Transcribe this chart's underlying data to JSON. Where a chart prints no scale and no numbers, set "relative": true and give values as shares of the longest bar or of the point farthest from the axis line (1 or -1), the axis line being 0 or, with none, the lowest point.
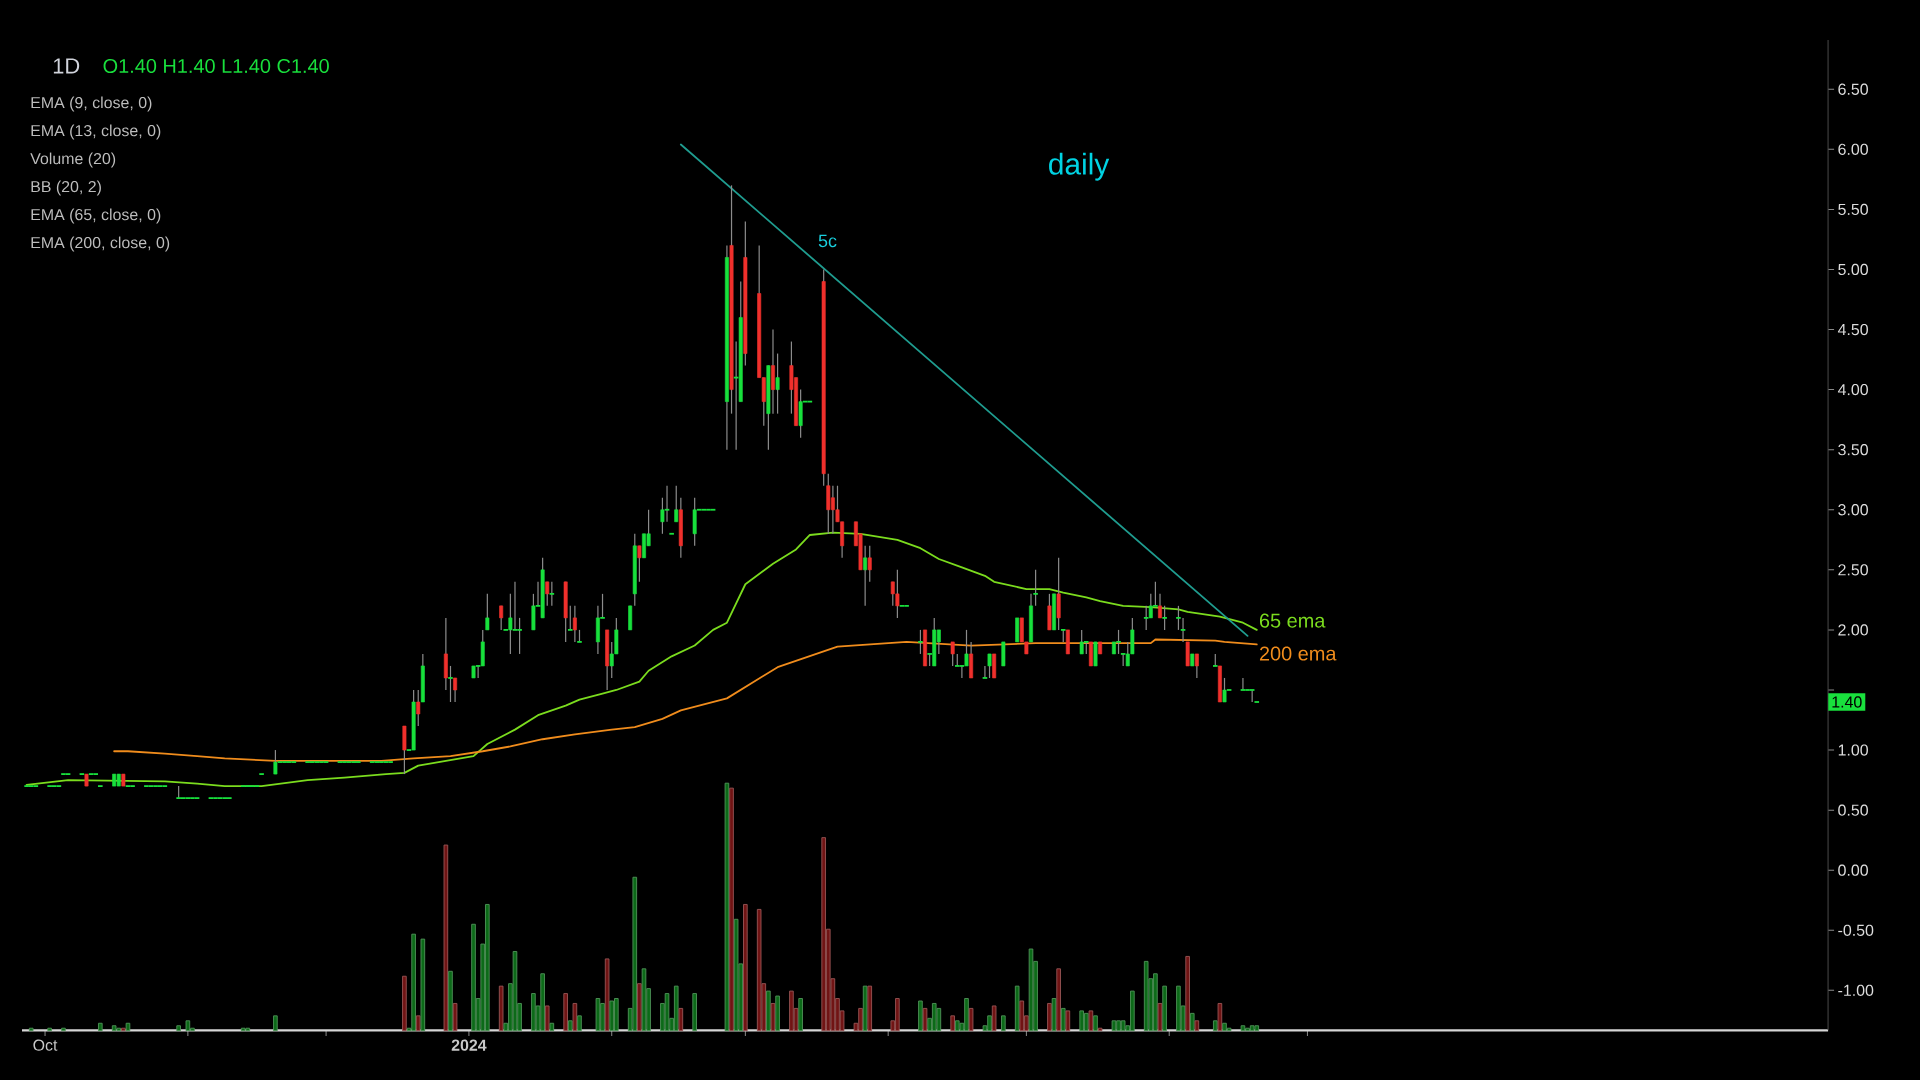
{
  "chart_data": [
    {
      "type": "candlestick",
      "title": "daily",
      "subtitle": "1D",
      "annotations": [
        "O1.40 H1.40 L1.40 C1.40",
        "EMA (9, close, 0)",
        "EMA (13, close, 0)",
        "Volume (20)",
        "BB (20, 2)",
        "EMA (65, close, 0)",
        "EMA (200, close, 0)",
        "5c",
        {
          "text": "1.40",
          "y": 1.4
        }
      ],
      "x": [
        "2023-09-27",
        "2023-09-28",
        "2023-09-29",
        "2023-10-02",
        "2023-10-03",
        "2023-10-04",
        "2023-10-05",
        "2023-10-06",
        "2023-10-09",
        "2023-10-10",
        "2023-10-11",
        "2023-10-12",
        "2023-10-13",
        "2023-10-16",
        "2023-10-17",
        "2023-10-18",
        "2023-10-19",
        "2023-10-20",
        "2023-10-23",
        "2023-10-24",
        "2023-10-25",
        "2023-10-26",
        "2023-10-27",
        "2023-10-30",
        "2023-10-31",
        "2023-11-01",
        "2023-11-02",
        "2023-11-03",
        "2023-11-06",
        "2023-11-07",
        "2023-11-08",
        "2023-11-09",
        "2023-11-10",
        "2023-11-13",
        "2023-11-14",
        "2023-11-15",
        "2023-11-16",
        "2023-11-17",
        "2023-11-20",
        "2023-11-21",
        "2023-11-22",
        "2023-11-23",
        "2023-11-24",
        "2023-11-27",
        "2023-11-28",
        "2023-11-29",
        "2023-11-30",
        "2023-12-01",
        "2023-12-04",
        "2023-12-05",
        "2023-12-06",
        "2023-12-07",
        "2023-12-08",
        "2023-12-11",
        "2023-12-12",
        "2023-12-13",
        "2023-12-14",
        "2023-12-15",
        "2023-12-18",
        "2023-12-19",
        "2023-12-20",
        "2023-12-21",
        "2023-12-22",
        "2023-12-27",
        "2023-12-28",
        "2023-12-29",
        "2024-01-02",
        "2024-01-03",
        "2024-01-04",
        "2024-01-05",
        "2024-01-08",
        "2024-01-09",
        "2024-01-10",
        "2024-01-11",
        "2024-01-12",
        "2024-01-15",
        "2024-01-16",
        "2024-01-17",
        "2024-01-18",
        "2024-01-19",
        "2024-01-22",
        "2024-01-23",
        "2024-01-24",
        "2024-01-25",
        "2024-01-29",
        "2024-01-30",
        "2024-01-31",
        "2024-02-01",
        "2024-02-02",
        "2024-02-05",
        "2024-02-06",
        "2024-02-07",
        "2024-02-08",
        "2024-02-09",
        "2024-02-12",
        "2024-02-13",
        "2024-02-14",
        "2024-02-15",
        "2024-02-16",
        "2024-02-19",
        "2024-02-20",
        "2024-02-21",
        "2024-02-22",
        "2024-02-23",
        "2024-02-26",
        "2024-02-27",
        "2024-02-28",
        "2024-02-29",
        "2024-03-01",
        "2024-03-04",
        "2024-03-05",
        "2024-03-06",
        "2024-03-07",
        "2024-03-08",
        "2024-03-11",
        "2024-03-12",
        "2024-03-13",
        "2024-03-14",
        "2024-03-15",
        "2024-03-18",
        "2024-03-19",
        "2024-03-20",
        "2024-03-21",
        "2024-03-22",
        "2024-03-25",
        "2024-03-26",
        "2024-03-27",
        "2024-03-28",
        "2024-04-02",
        "2024-04-03",
        "2024-04-04",
        "2024-04-05",
        "2024-04-08",
        "2024-04-09",
        "2024-04-10",
        "2024-04-11",
        "2024-04-12",
        "2024-04-15",
        "2024-04-16",
        "2024-04-17",
        "2024-04-18",
        "2024-04-19",
        "2024-04-22",
        "2024-04-23",
        "2024-04-24",
        "2024-04-26",
        "2024-04-29",
        "2024-04-30",
        "2024-05-01",
        "2024-05-02",
        "2024-05-03",
        "2024-05-06",
        "2024-05-07",
        "2024-05-08",
        "2024-05-09",
        "2024-05-10",
        "2024-05-13",
        "2024-05-14",
        "2024-05-15",
        "2024-05-16",
        "2024-05-17",
        "2024-05-20",
        "2024-05-21",
        "2024-05-22",
        "2024-05-23",
        "2024-05-24",
        "2024-05-27",
        "2024-05-28",
        "2024-05-29",
        "2024-05-30",
        "2024-05-31",
        "2024-06-03",
        "2024-06-04",
        "2024-06-05",
        "2024-06-06",
        "2024-06-07",
        "2024-06-11",
        "2024-06-12",
        "2024-06-13",
        "2024-06-14",
        "2024-06-17",
        "2024-06-18",
        "2024-06-19",
        "2024-06-20"
      ],
      "ohlc": [
        [
          0.7,
          0.7,
          0.7,
          0.7
        ],
        [
          0.7,
          0.7,
          0.7,
          0.7
        ],
        [
          0.7,
          0.7,
          0.7,
          0.7
        ],
        [
          0.7,
          0.7,
          0.7,
          0.7
        ],
        [
          0.7,
          0.7,
          0.7,
          0.7
        ],
        [
          0.7,
          0.7,
          0.7,
          0.7
        ],
        [
          0.8,
          0.8,
          0.8,
          0.8
        ],
        [
          0.8,
          0.8,
          0.8,
          0.8
        ],
        [
          0.8,
          0.8,
          0.8,
          0.8
        ],
        [
          0.8,
          0.8,
          0.7,
          0.7
        ],
        [
          0.8,
          0.8,
          0.8,
          0.8
        ],
        [
          0.8,
          0.8,
          0.8,
          0.8
        ],
        [
          0.7,
          0.7,
          0.7,
          0.7
        ],
        [
          0.7,
          0.8,
          0.7,
          0.8
        ],
        [
          0.7,
          0.8,
          0.7,
          0.8
        ],
        [
          0.8,
          0.8,
          0.7,
          0.7
        ],
        [
          0.7,
          0.7,
          0.7,
          0.7
        ],
        [
          0.7,
          0.7,
          0.7,
          0.7
        ],
        [
          0.7,
          0.7,
          0.7,
          0.7
        ],
        [
          0.7,
          0.7,
          0.7,
          0.7
        ],
        [
          0.7,
          0.7,
          0.7,
          0.7
        ],
        [
          0.7,
          0.7,
          0.7,
          0.7
        ],
        [
          0.7,
          0.7,
          0.7,
          0.7
        ],
        [
          0.6,
          0.7,
          0.6,
          0.6
        ],
        [
          0.6,
          0.6,
          0.6,
          0.6
        ],
        [
          0.6,
          0.6,
          0.6,
          0.6
        ],
        [
          0.6,
          0.6,
          0.6,
          0.6
        ],
        [
          0.6,
          0.6,
          0.6,
          0.6
        ],
        [
          0.6,
          0.6,
          0.6,
          0.6
        ],
        [
          0.6,
          0.6,
          0.6,
          0.6
        ],
        [
          0.6,
          0.6,
          0.6,
          0.6
        ],
        [
          0.6,
          0.6,
          0.6,
          0.6
        ],
        [
          0.6,
          0.6,
          0.6,
          0.6
        ],
        [
          0.7,
          0.7,
          0.7,
          0.7
        ],
        [
          0.7,
          0.7,
          0.7,
          0.7
        ],
        [
          0.7,
          0.7,
          0.7,
          0.7
        ],
        [
          0.7,
          0.7,
          0.7,
          0.7
        ],
        [
          0.8,
          0.8,
          0.8,
          0.8
        ],
        [
          0.8,
          1.0,
          0.8,
          0.9
        ],
        [
          0.9,
          0.9,
          0.9,
          0.9
        ],
        [
          0.9,
          0.9,
          0.9,
          0.9
        ],
        [
          0.9,
          0.9,
          0.9,
          0.9
        ],
        [
          0.9,
          0.9,
          0.9,
          0.9
        ],
        [
          0.9,
          0.9,
          0.9,
          0.9
        ],
        [
          0.9,
          0.9,
          0.9,
          0.9
        ],
        [
          0.9,
          0.9,
          0.9,
          0.9
        ],
        [
          0.9,
          0.9,
          0.9,
          0.9
        ],
        [
          0.9,
          0.9,
          0.9,
          0.9
        ],
        [
          0.9,
          0.9,
          0.9,
          0.9
        ],
        [
          0.9,
          0.9,
          0.9,
          0.9
        ],
        [
          0.9,
          0.9,
          0.9,
          0.9
        ],
        [
          0.9,
          0.9,
          0.9,
          0.9
        ],
        [
          0.9,
          0.9,
          0.9,
          0.9
        ],
        [
          0.9,
          0.9,
          0.9,
          0.9
        ],
        [
          0.9,
          0.9,
          0.9,
          0.9
        ],
        [
          0.9,
          0.9,
          0.9,
          0.9
        ],
        [
          0.9,
          0.9,
          0.9,
          0.9
        ],
        [
          0.9,
          0.9,
          0.9,
          0.9
        ],
        [
          1.2,
          1.2,
          0.8,
          1.0
        ],
        [
          1.0,
          1.0,
          1.0,
          1.0
        ],
        [
          1.0,
          1.5,
          1.0,
          1.4
        ],
        [
          1.4,
          1.5,
          1.2,
          1.3
        ],
        [
          1.4,
          1.8,
          1.4,
          1.7
        ],
        [
          1.8,
          2.1,
          1.5,
          1.6
        ],
        [
          1.6,
          1.7,
          1.4,
          1.6
        ],
        [
          1.6,
          1.6,
          1.4,
          1.5
        ],
        [
          1.6,
          1.7,
          1.6,
          1.7
        ],
        [
          1.7,
          1.7,
          1.6,
          1.7
        ],
        [
          1.7,
          2.0,
          1.7,
          1.9
        ],
        [
          2.0,
          2.3,
          2.0,
          2.1
        ],
        [
          2.2,
          2.2,
          2.0,
          2.1
        ],
        [
          2.0,
          2.0,
          2.0,
          2.0
        ],
        [
          2.0,
          2.3,
          1.8,
          2.1
        ],
        [
          2.0,
          2.4,
          2.0,
          2.0
        ],
        [
          2.0,
          2.1,
          1.8,
          2.0
        ],
        [
          2.0,
          2.3,
          2.0,
          2.2
        ],
        [
          2.2,
          2.4,
          2.2,
          2.2
        ],
        [
          2.1,
          2.6,
          2.1,
          2.5
        ],
        [
          2.4,
          2.4,
          2.2,
          2.3
        ],
        [
          2.3,
          2.4,
          2.2,
          2.3
        ],
        [
          2.4,
          2.4,
          1.9,
          2.1
        ],
        [
          2.0,
          2.2,
          2.0,
          2.0
        ],
        [
          2.1,
          2.2,
          1.9,
          2.0
        ],
        [
          1.9,
          2.0,
          1.9,
          1.9
        ],
        [
          1.9,
          2.2,
          1.8,
          2.1
        ],
        [
          2.1,
          2.3,
          2.1,
          2.1
        ],
        [
          2.0,
          2.0,
          1.5,
          1.7
        ],
        [
          1.7,
          1.9,
          1.6,
          1.8
        ],
        [
          1.8,
          2.1,
          1.8,
          2.0
        ],
        [
          2.0,
          2.2,
          2.0,
          2.2
        ],
        [
          2.3,
          2.8,
          2.2,
          2.7
        ],
        [
          2.7,
          2.7,
          2.4,
          2.6
        ],
        [
          2.6,
          2.8,
          2.6,
          2.8
        ],
        [
          2.7,
          3.0,
          2.7,
          2.8
        ],
        [
          2.9,
          3.1,
          2.8,
          3.0
        ],
        [
          3.0,
          3.2,
          2.9,
          3.0
        ],
        [
          2.8,
          2.8,
          2.8,
          2.8
        ],
        [
          2.9,
          3.2,
          2.9,
          3.0
        ],
        [
          3.0,
          3.1,
          2.6,
          2.7
        ],
        [
          2.8,
          3.1,
          2.7,
          3.0
        ],
        [
          3.0,
          3.0,
          3.0,
          3.0
        ],
        [
          3.0,
          3.0,
          3.0,
          3.0
        ],
        [
          3.0,
          3.0,
          3.0,
          3.0
        ],
        [
          3.0,
          3.0,
          3.0,
          3.0
        ],
        [
          3.9,
          5.2,
          3.5,
          5.1
        ],
        [
          5.2,
          5.7,
          3.8,
          4.0
        ],
        [
          4.1,
          4.4,
          3.5,
          4.1
        ],
        [
          3.9,
          4.9,
          3.9,
          4.6
        ],
        [
          5.1,
          5.4,
          4.2,
          4.3
        ],
        [
          4.8,
          5.2,
          4.1,
          4.1
        ],
        [
          4.1,
          4.1,
          3.7,
          3.9
        ],
        [
          3.8,
          4.2,
          3.5,
          4.2
        ],
        [
          4.2,
          4.5,
          3.8,
          4.0
        ],
        [
          4.0,
          4.3,
          3.8,
          4.1
        ],
        [
          4.2,
          4.4,
          3.8,
          4.0
        ],
        [
          4.1,
          4.1,
          3.7,
          3.7
        ],
        [
          3.7,
          4.0,
          3.6,
          3.9
        ],
        [
          3.9,
          3.9,
          3.9,
          3.9
        ],
        [
          3.9,
          3.9,
          3.9,
          3.9
        ],
        [
          4.9,
          5.0,
          3.2,
          3.3
        ],
        [
          3.2,
          3.3,
          2.8,
          3.0
        ],
        [
          3.1,
          3.2,
          2.8,
          3.0
        ],
        [
          3.0,
          3.2,
          2.9,
          2.9
        ],
        [
          2.9,
          2.9,
          2.6,
          2.7
        ],
        [
          2.9,
          2.9,
          2.7,
          2.7
        ],
        [
          2.8,
          2.8,
          2.5,
          2.5
        ],
        [
          2.5,
          2.7,
          2.2,
          2.6
        ],
        [
          2.6,
          2.7,
          2.4,
          2.5
        ],
        [
          2.4,
          2.4,
          2.2,
          2.3
        ],
        [
          2.3,
          2.5,
          2.1,
          2.2
        ],
        [
          2.2,
          2.2,
          2.2,
          2.2
        ],
        [
          2.2,
          2.2,
          2.2,
          2.2
        ],
        [
          1.9,
          2.0,
          1.8,
          1.9
        ],
        [
          2.0,
          2.0,
          1.7,
          1.7
        ],
        [
          1.8,
          1.8,
          1.7,
          1.8
        ],
        [
          1.7,
          2.1,
          1.7,
          2.0
        ],
        [
          1.9,
          2.0,
          1.8,
          2.0
        ],
        [
          1.9,
          1.9,
          1.7,
          1.8
        ],
        [
          1.7,
          1.8,
          1.7,
          1.7
        ],
        [
          1.7,
          1.7,
          1.6,
          1.7
        ],
        [
          1.7,
          2.0,
          1.7,
          1.8
        ],
        [
          1.8,
          1.9,
          1.6,
          1.6
        ],
        [
          1.6,
          1.7,
          1.6,
          1.6
        ],
        [
          1.7,
          1.8,
          1.6,
          1.8
        ],
        [
          1.8,
          1.8,
          1.6,
          1.6
        ],
        [
          1.7,
          1.9,
          1.7,
          1.9
        ],
        [
          1.9,
          2.1,
          1.9,
          2.1
        ],
        [
          2.1,
          2.1,
          1.9,
          1.9
        ],
        [
          1.9,
          1.9,
          1.8,
          1.8
        ],
        [
          1.9,
          2.3,
          1.9,
          2.2
        ],
        [
          2.3,
          2.5,
          2.2,
          2.3
        ],
        [
          2.2,
          2.3,
          2.0,
          2.0
        ],
        [
          2.0,
          2.3,
          2.0,
          2.3
        ],
        [
          2.3,
          2.6,
          2.0,
          2.1
        ],
        [
          2.0,
          2.0,
          1.9,
          2.0
        ],
        [
          2.0,
          2.0,
          1.8,
          1.8
        ],
        [
          1.8,
          2.0,
          1.8,
          1.9
        ],
        [
          1.9,
          1.9,
          1.8,
          1.9
        ],
        [
          1.9,
          1.9,
          1.7,
          1.7
        ],
        [
          1.7,
          1.9,
          1.7,
          1.9
        ],
        [
          1.9,
          1.9,
          1.8,
          1.8
        ],
        [
          1.8,
          1.9,
          1.8,
          1.9
        ],
        [
          1.9,
          2.0,
          1.8,
          1.9
        ],
        [
          1.8,
          1.8,
          1.7,
          1.8
        ],
        [
          1.7,
          1.9,
          1.7,
          1.8
        ],
        [
          1.8,
          2.1,
          1.8,
          2.0
        ],
        [
          2.1,
          2.2,
          2.0,
          2.1
        ],
        [
          2.1,
          2.3,
          2.1,
          2.2
        ],
        [
          2.2,
          2.4,
          2.2,
          2.2
        ],
        [
          2.2,
          2.3,
          2.1,
          2.1
        ],
        [
          2.1,
          2.2,
          2.0,
          2.1
        ],
        [
          2.1,
          2.2,
          2.0,
          2.1
        ],
        [
          2.0,
          2.1,
          1.9,
          2.0
        ],
        [
          1.9,
          1.9,
          1.7,
          1.7
        ],
        [
          1.7,
          1.8,
          1.7,
          1.8
        ],
        [
          1.8,
          1.8,
          1.6,
          1.7
        ],
        [
          1.7,
          1.8,
          1.7,
          1.7
        ],
        [
          1.7,
          1.7,
          1.4,
          1.4
        ],
        [
          1.4,
          1.6,
          1.4,
          1.5
        ],
        [
          1.5,
          1.5,
          1.5,
          1.5
        ],
        [
          1.5,
          1.6,
          1.5,
          1.5
        ],
        [
          1.5,
          1.5,
          1.5,
          1.5
        ],
        [
          1.5,
          1.5,
          1.4,
          1.5
        ],
        [
          1.4,
          1.4,
          1.4,
          1.4
        ]
      ],
      "colors": [
        "#18e03c",
        "#18e03c",
        "#18e03c",
        "#18e03c",
        "#18e03c",
        "#18e03c",
        "#18e03c",
        "#18e03c",
        "#18e03c",
        "#f0302c",
        "#18e03c",
        "#18e03c",
        "#18e03c",
        "#18e03c",
        "#18e03c",
        "#f0302c",
        "#18e03c",
        "#18e03c",
        "#18e03c",
        "#18e03c",
        "#18e03c",
        "#18e03c",
        "#18e03c",
        "#18e03c",
        "#18e03c",
        "#18e03c",
        "#18e03c",
        "#18e03c",
        "#18e03c",
        "#18e03c",
        "#18e03c",
        "#18e03c",
        "#18e03c",
        "#18e03c",
        "#18e03c",
        "#18e03c",
        "#18e03c",
        "#18e03c",
        "#18e03c",
        "#18e03c",
        "#18e03c",
        "#18e03c",
        "#18e03c",
        "#18e03c",
        "#18e03c",
        "#18e03c",
        "#18e03c",
        "#18e03c",
        "#18e03c",
        "#18e03c",
        "#18e03c",
        "#18e03c",
        "#18e03c",
        "#18e03c",
        "#18e03c",
        "#18e03c",
        "#18e03c",
        "#18e03c",
        "#f0302c",
        "#18e03c",
        "#18e03c",
        "#f0302c",
        "#18e03c",
        "#f0302c",
        "#18e03c",
        "#f0302c",
        "#18e03c",
        "#18e03c",
        "#18e03c",
        "#18e03c",
        "#f0302c",
        "#18e03c",
        "#18e03c",
        "#18e03c",
        "#18e03c",
        "#18e03c",
        "#18e03c",
        "#18e03c",
        "#f0302c",
        "#18e03c",
        "#f0302c",
        "#18e03c",
        "#f0302c",
        "#18e03c",
        "#18e03c",
        "#18e03c",
        "#f0302c",
        "#18e03c",
        "#18e03c",
        "#18e03c",
        "#18e03c",
        "#f0302c",
        "#18e03c",
        "#18e03c",
        "#18e03c",
        "#18e03c",
        "#18e03c",
        "#18e03c",
        "#f0302c",
        "#18e03c",
        "#18e03c",
        "#18e03c",
        "#18e03c",
        "#18e03c",
        "#18e03c",
        "#f0302c",
        "#18e03c",
        "#18e03c",
        "#f0302c",
        "#f0302c",
        "#f0302c",
        "#18e03c",
        "#f0302c",
        "#18e03c",
        "#f0302c",
        "#f0302c",
        "#18e03c",
        "#18e03c",
        "#18e03c",
        "#f0302c",
        "#f0302c",
        "#f0302c",
        "#f0302c",
        "#f0302c",
        "#f0302c",
        "#f0302c",
        "#18e03c",
        "#f0302c",
        "#f0302c",
        "#f0302c",
        "#18e03c",
        "#18e03c",
        "#18e03c",
        "#f0302c",
        "#18e03c",
        "#18e03c",
        "#18e03c",
        "#f0302c",
        "#18e03c",
        "#18e03c",
        "#18e03c",
        "#f0302c",
        "#18e03c",
        "#18e03c",
        "#f0302c",
        "#18e03c",
        "#18e03c",
        "#f0302c",
        "#f0302c",
        "#18e03c",
        "#18e03c",
        "#f0302c",
        "#18e03c",
        "#f0302c",
        "#18e03c",
        "#f0302c",
        "#18e03c",
        "#18e03c",
        "#f0302c",
        "#18e03c",
        "#f0302c",
        "#18e03c",
        "#18e03c",
        "#18e03c",
        "#18e03c",
        "#18e03c",
        "#18e03c",
        "#18e03c",
        "#18e03c",
        "#f0302c",
        "#18e03c",
        "#18e03c",
        "#18e03c",
        "#f0302c",
        "#18e03c",
        "#f0302c",
        "#18e03c",
        "#f0302c",
        "#18e03c",
        "#18e03c",
        "#18e03c",
        "#18e03c",
        "#18e03c",
        "#18e03c"
      ],
      "series": [
        {
          "name": "65 ema",
          "type": "line",
          "color": "#7bdc1e",
          "x": [
            "2023-09-27",
            "2023-10-06",
            "2023-10-27",
            "2023-11-03",
            "2023-11-09",
            "2023-11-17",
            "2023-11-27",
            "2023-12-05",
            "2023-12-14",
            "2023-12-18",
            "2023-12-21",
            "2023-12-27",
            "2024-01-02",
            "2024-01-05",
            "2024-01-11",
            "2024-01-16",
            "2024-01-22",
            "2024-01-25",
            "2024-01-30",
            "2024-02-02",
            "2024-02-07",
            "2024-02-09",
            "2024-02-14",
            "2024-02-19",
            "2024-02-23",
            "2024-02-26",
            "2024-03-01",
            "2024-03-07",
            "2024-03-12",
            "2024-03-15",
            "2024-03-20",
            "2024-03-26",
            "2024-04-03",
            "2024-04-08",
            "2024-04-12",
            "2024-04-17",
            "2024-04-22",
            "2024-04-24",
            "2024-05-01",
            "2024-05-06",
            "2024-05-09",
            "2024-05-14",
            "2024-05-17",
            "2024-05-22",
            "2024-05-28",
            "2024-06-03",
            "2024-06-05",
            "2024-06-12",
            "2024-06-17",
            "2024-06-20"
          ],
          "values": [
            0.71,
            0.75,
            0.74,
            0.72,
            0.7,
            0.7,
            0.75,
            0.77,
            0.8,
            0.81,
            0.87,
            0.91,
            0.95,
            1.05,
            1.17,
            1.29,
            1.37,
            1.42,
            1.47,
            1.5,
            1.57,
            1.66,
            1.78,
            1.87,
            2.0,
            2.06,
            2.38,
            2.55,
            2.67,
            2.79,
            2.81,
            2.8,
            2.75,
            2.68,
            2.59,
            2.52,
            2.45,
            2.4,
            2.34,
            2.34,
            2.31,
            2.27,
            2.24,
            2.2,
            2.19,
            2.17,
            2.15,
            2.11,
            2.06,
            2.0
          ]
        },
        {
          "name": "200 ema",
          "type": "line",
          "color": "#f08c1c",
          "x": [
            "2023-10-16",
            "2023-10-19",
            "2023-10-27",
            "2023-11-03",
            "2023-11-09",
            "2023-11-20",
            "2023-12-13",
            "2023-12-20",
            "2023-12-28",
            "2024-01-04",
            "2024-01-10",
            "2024-01-17",
            "2024-01-24",
            "2024-02-01",
            "2024-02-06",
            "2024-02-12",
            "2024-02-16",
            "2024-02-26",
            "2024-03-08",
            "2024-03-21",
            "2024-04-05",
            "2024-04-19",
            "2024-05-03",
            "2024-05-28",
            "2024-05-29",
            "2024-06-11",
            "2024-06-13",
            "2024-06-20"
          ],
          "values": [
            0.99,
            0.99,
            0.97,
            0.95,
            0.93,
            0.91,
            0.91,
            0.93,
            0.95,
            0.99,
            1.03,
            1.09,
            1.13,
            1.17,
            1.19,
            1.26,
            1.33,
            1.43,
            1.69,
            1.86,
            1.9,
            1.87,
            1.89,
            1.89,
            1.92,
            1.91,
            1.9,
            1.88
          ]
        },
        {
          "type": "line",
          "color": "#1f9c8f",
          "x": [
            "2024-02-16",
            "2024-06-18"
          ],
          "values": [
            6.04,
            1.95
          ]
        }
      ],
      "xlim": [
        "2023-09-26",
        "2024-10-22"
      ],
      "ylim": [
        -1.33,
        6.91
      ],
      "xticks": [
        {
          "value": "2023-10-01",
          "label": "Oct"
        },
        {
          "value": "2023-11-01",
          "label": null
        },
        {
          "value": "2023-12-01",
          "label": null
        },
        {
          "value": "2024-01-01",
          "label": "2024"
        },
        {
          "value": "2024-02-01",
          "label": null
        },
        {
          "value": "2024-03-01",
          "label": null
        },
        {
          "value": "2024-04-01",
          "label": null
        },
        {
          "value": "2024-05-01",
          "label": null
        },
        {
          "value": "2024-06-01",
          "label": null
        },
        {
          "value": "2024-07-01",
          "label": null
        }
      ],
      "yticks": [
        {
          "value": -1,
          "label": "-1.00"
        },
        {
          "value": -0.5,
          "label": "-0.50"
        },
        {
          "value": 0,
          "label": "0.00"
        },
        {
          "value": 0.5,
          "label": "0.50"
        },
        {
          "value": 1,
          "label": "1.00"
        },
        {
          "value": 1.5,
          "label": null
        },
        {
          "value": 2,
          "label": "2.00"
        },
        {
          "value": 2.5,
          "label": "2.50"
        },
        {
          "value": 3,
          "label": "3.00"
        },
        {
          "value": 3.5,
          "label": "3.50"
        },
        {
          "value": 4,
          "label": "4.00"
        },
        {
          "value": 4.5,
          "label": "4.50"
        },
        {
          "value": 5,
          "label": "5.00"
        },
        {
          "value": 5.5,
          "label": "5.50"
        },
        {
          "value": 6,
          "label": "6.00"
        },
        {
          "value": 6.5,
          "label": "6.50"
        }
      ]
    },
    {
      "type": "bar",
      "relative": true,
      "xlim": [
        "2023-09-26",
        "2024-10-22"
      ],
      "x": [
        "2023-09-28",
        "2023-10-02",
        "2023-10-05",
        "2023-10-13",
        "2023-10-16",
        "2023-10-17",
        "2023-10-18",
        "2023-10-19",
        "2023-10-30",
        "2023-11-01",
        "2023-11-02",
        "2023-11-13",
        "2023-11-14",
        "2023-11-20",
        "2023-12-18",
        "2023-12-19",
        "2023-12-20",
        "2023-12-21",
        "2023-12-22",
        "2023-12-27",
        "2023-12-28",
        "2023-12-29",
        "2024-01-02",
        "2024-01-03",
        "2024-01-04",
        "2024-01-05",
        "2024-01-08",
        "2024-01-09",
        "2024-01-10",
        "2024-01-11",
        "2024-01-12",
        "2024-01-15",
        "2024-01-16",
        "2024-01-17",
        "2024-01-18",
        "2024-01-19",
        "2024-01-22",
        "2024-01-23",
        "2024-01-24",
        "2024-01-25",
        "2024-01-29",
        "2024-01-30",
        "2024-01-31",
        "2024-02-01",
        "2024-02-02",
        "2024-02-05",
        "2024-02-06",
        "2024-02-07",
        "2024-02-08",
        "2024-02-09",
        "2024-02-12",
        "2024-02-13",
        "2024-02-14",
        "2024-02-15",
        "2024-02-16",
        "2024-02-19",
        "2024-02-26",
        "2024-02-27",
        "2024-02-28",
        "2024-02-29",
        "2024-03-01",
        "2024-03-04",
        "2024-03-05",
        "2024-03-06",
        "2024-03-07",
        "2024-03-08",
        "2024-03-11",
        "2024-03-12",
        "2024-03-13",
        "2024-03-18",
        "2024-03-19",
        "2024-03-20",
        "2024-03-21",
        "2024-03-22",
        "2024-03-25",
        "2024-03-26",
        "2024-03-27",
        "2024-03-28",
        "2024-04-02",
        "2024-04-03",
        "2024-04-08",
        "2024-04-09",
        "2024-04-10",
        "2024-04-11",
        "2024-04-12",
        "2024-04-15",
        "2024-04-16",
        "2024-04-17",
        "2024-04-18",
        "2024-04-19",
        "2024-04-22",
        "2024-04-23",
        "2024-04-24",
        "2024-04-26",
        "2024-04-29",
        "2024-04-30",
        "2024-05-01",
        "2024-05-02",
        "2024-05-03",
        "2024-05-06",
        "2024-05-07",
        "2024-05-08",
        "2024-05-09",
        "2024-05-10",
        "2024-05-13",
        "2024-05-14",
        "2024-05-15",
        "2024-05-16",
        "2024-05-17",
        "2024-05-20",
        "2024-05-21",
        "2024-05-22",
        "2024-05-23",
        "2024-05-24",
        "2024-05-27",
        "2024-05-28",
        "2024-05-29",
        "2024-05-30",
        "2024-05-31",
        "2024-06-03",
        "2024-06-04",
        "2024-06-05",
        "2024-06-06",
        "2024-06-07",
        "2024-06-11",
        "2024-06-12",
        "2024-06-13",
        "2024-06-14",
        "2024-06-17",
        "2024-06-18",
        "2024-06-19",
        "2024-06-20"
      ],
      "values": [
        0.01,
        0.01,
        0.01,
        0.03,
        0.02,
        0.01,
        0.01,
        0.03,
        0.02,
        0.04,
        0.01,
        0.01,
        0.01,
        0.06,
        0.22,
        0.01,
        0.39,
        0.06,
        0.37,
        0.75,
        0.24,
        0.11,
        0.43,
        0.13,
        0.35,
        0.51,
        0.18,
        0.03,
        0.19,
        0.32,
        0.11,
        0.15,
        0.1,
        0.23,
        0.1,
        0.03,
        0.15,
        0.04,
        0.11,
        0.06,
        0.13,
        0.11,
        0.29,
        0.12,
        0.13,
        0.09,
        0.62,
        0.19,
        0.25,
        0.17,
        0.11,
        0.15,
        0.05,
        0.18,
        0.09,
        0.15,
        1,
        0.98,
        0.45,
        0.27,
        0.51,
        0.49,
        0.19,
        0.16,
        0.11,
        0.14,
        0.16,
        0.09,
        0.13,
        0.78,
        0.41,
        0.21,
        0.13,
        0.08,
        0.03,
        0.09,
        0.18,
        0.18,
        0.04,
        0.13,
        0.12,
        0.09,
        0.05,
        0.11,
        0.09,
        0.06,
        0.04,
        0.03,
        0.13,
        0.09,
        0.02,
        0.06,
        0.1,
        0.06,
        0.18,
        0.12,
        0.06,
        0.33,
        0.28,
        0.11,
        0.13,
        0.25,
        0.09,
        0.08,
        0.08,
        0.07,
        0.08,
        0.06,
        0.01,
        0.04,
        0.04,
        0.04,
        0.02,
        0.16,
        0.28,
        0.21,
        0.23,
        0.11,
        0.18,
        0.18,
        0.1,
        0.3,
        0.07,
        0.04,
        0.04,
        0.11,
        0.03,
        0.01,
        0.02,
        0.01,
        0.02,
        0.02
      ],
      "colors": [
        "#0c6a18",
        "#0c6a18",
        "#0c6a18",
        "#0c6a18",
        "#0c6a18",
        "#0c6a18",
        "#701414",
        "#0c6a18",
        "#0c6a18",
        "#0c6a18",
        "#0c6a18",
        "#0c6a18",
        "#0c6a18",
        "#0c6a18",
        "#701414",
        "#0c6a18",
        "#0c6a18",
        "#701414",
        "#0c6a18",
        "#701414",
        "#0c6a18",
        "#701414",
        "#0c6a18",
        "#0c6a18",
        "#0c6a18",
        "#0c6a18",
        "#701414",
        "#0c6a18",
        "#0c6a18",
        "#0c6a18",
        "#0c6a18",
        "#0c6a18",
        "#0c6a18",
        "#0c6a18",
        "#701414",
        "#0c6a18",
        "#701414",
        "#0c6a18",
        "#701414",
        "#0c6a18",
        "#0c6a18",
        "#0c6a18",
        "#701414",
        "#0c6a18",
        "#0c6a18",
        "#0c6a18",
        "#0c6a18",
        "#701414",
        "#0c6a18",
        "#0c6a18",
        "#0c6a18",
        "#0c6a18",
        "#0c6a18",
        "#0c6a18",
        "#701414",
        "#0c6a18",
        "#0c6a18",
        "#701414",
        "#0c6a18",
        "#0c6a18",
        "#701414",
        "#701414",
        "#701414",
        "#0c6a18",
        "#701414",
        "#0c6a18",
        "#701414",
        "#701414",
        "#0c6a18",
        "#701414",
        "#701414",
        "#701414",
        "#701414",
        "#701414",
        "#701414",
        "#701414",
        "#0c6a18",
        "#701414",
        "#701414",
        "#701414",
        "#0c6a18",
        "#701414",
        "#0c6a18",
        "#0c6a18",
        "#0c6a18",
        "#701414",
        "#0c6a18",
        "#0c6a18",
        "#0c6a18",
        "#701414",
        "#0c6a18",
        "#0c6a18",
        "#701414",
        "#0c6a18",
        "#0c6a18",
        "#701414",
        "#701414",
        "#0c6a18",
        "#0c6a18",
        "#701414",
        "#0c6a18",
        "#701414",
        "#0c6a18",
        "#701414",
        "#0c6a18",
        "#0c6a18",
        "#701414",
        "#0c6a18",
        "#701414",
        "#0c6a18",
        "#0c6a18",
        "#0c6a18",
        "#0c6a18",
        "#0c6a18",
        "#0c6a18",
        "#0c6a18",
        "#0c6a18",
        "#701414",
        "#0c6a18",
        "#0c6a18",
        "#0c6a18",
        "#701414",
        "#0c6a18",
        "#701414",
        "#0c6a18",
        "#701414",
        "#0c6a18",
        "#0c6a18",
        "#0c6a18",
        "#0c6a18",
        "#0c6a18",
        "#0c6a18"
      ]
    }
  ]
}
